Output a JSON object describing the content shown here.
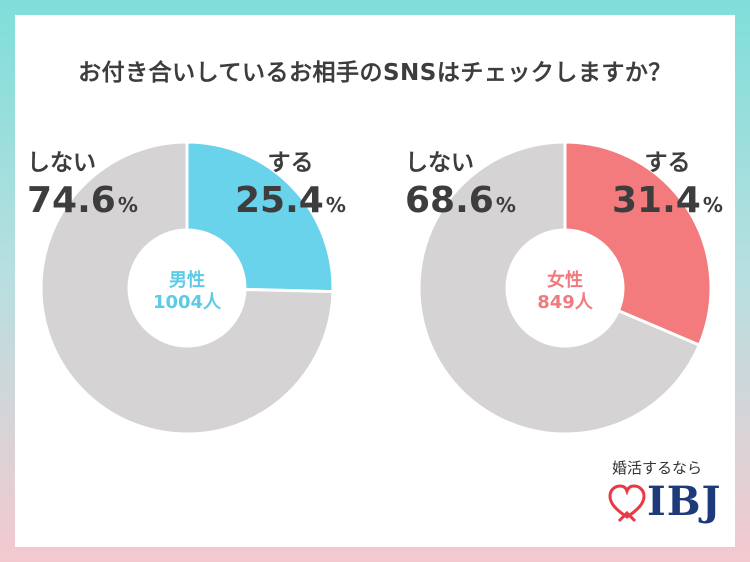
{
  "title": "お付き合いしているお相手のSNSはチェックしますか？",
  "chart_data": [
    {
      "type": "pie",
      "center_label": "男性",
      "center_count": "1004人",
      "slices": [
        {
          "label": "する",
          "value": 25.4,
          "display": "25.4",
          "color": "#6ad3ec"
        },
        {
          "label": "しない",
          "value": 74.6,
          "display": "74.6",
          "color": "#d6d3d4"
        }
      ],
      "accent": "#6ad3ec"
    },
    {
      "type": "pie",
      "center_label": "女性",
      "center_count": "849人",
      "slices": [
        {
          "label": "する",
          "value": 31.4,
          "display": "31.4",
          "color": "#f37b7e"
        },
        {
          "label": "しない",
          "value": 68.6,
          "display": "68.6",
          "color": "#d6d3d4"
        }
      ],
      "accent": "#f37b7e"
    }
  ],
  "percent_sign": "%",
  "logo": {
    "tagline": "婚活するなら",
    "brand": "IBJ",
    "heart_color": "#e83a45"
  }
}
